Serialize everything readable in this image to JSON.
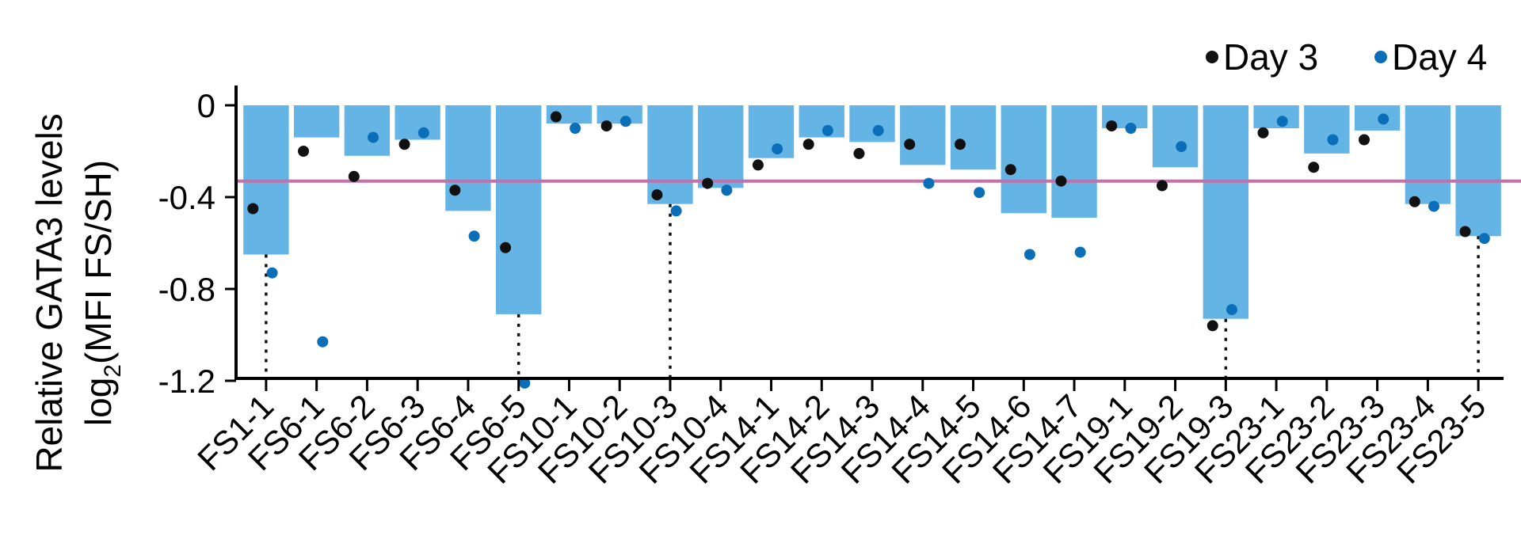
{
  "chart_data": {
    "type": "bar",
    "ylabel_line1": "Relative GATA3 levels",
    "ylabel_line2_pre": "log",
    "ylabel_line2_sub": "2",
    "ylabel_line2_post": "(MFI FS/SH)",
    "ylim": [
      -1.3,
      0.1
    ],
    "yticks": [
      0,
      -0.4,
      -0.8,
      -1.2
    ],
    "ytick_labels": [
      "0",
      "-0.4",
      "-0.8",
      "-1.2"
    ],
    "grid": false,
    "legend_position": "top-right",
    "categories": [
      "FS1-1",
      "FS6-1",
      "FS6-2",
      "FS6-3",
      "FS6-4",
      "FS6-5",
      "FS10-1",
      "FS10-2",
      "FS10-3",
      "FS10-4",
      "FS14-1",
      "FS14-2",
      "FS14-3",
      "FS14-4",
      "FS14-5",
      "FS14-6",
      "FS14-7",
      "FS19-1",
      "FS19-2",
      "FS19-3",
      "FS23-1",
      "FS23-2",
      "FS23-3",
      "FS23-4",
      "FS23-5"
    ],
    "bar_values": [
      -0.65,
      -0.14,
      -0.22,
      -0.15,
      -0.46,
      -0.91,
      -0.08,
      -0.08,
      -0.43,
      -0.36,
      -0.23,
      -0.14,
      -0.16,
      -0.26,
      -0.28,
      -0.47,
      -0.49,
      -0.1,
      -0.27,
      -0.93,
      -0.1,
      -0.21,
      -0.11,
      -0.43,
      -0.57
    ],
    "series": [
      {
        "name": "Day 3",
        "color": "#111111",
        "values": [
          -0.45,
          -0.2,
          -0.31,
          -0.17,
          -0.37,
          -0.62,
          -0.05,
          -0.09,
          -0.39,
          -0.34,
          -0.26,
          -0.17,
          -0.21,
          -0.17,
          -0.17,
          -0.28,
          -0.33,
          -0.09,
          -0.35,
          -0.96,
          -0.12,
          -0.27,
          -0.15,
          -0.42,
          -0.55
        ]
      },
      {
        "name": "Day 4",
        "color": "#0a6fb8",
        "values": [
          -0.73,
          -1.03,
          -0.14,
          -0.12,
          -0.57,
          -1.21,
          -0.1,
          -0.07,
          -0.46,
          -0.37,
          -0.19,
          -0.11,
          -0.11,
          -0.34,
          -0.38,
          -0.65,
          -0.64,
          -0.1,
          -0.18,
          -0.89,
          -0.07,
          -0.15,
          -0.06,
          -0.44,
          -0.58
        ]
      }
    ],
    "day4_first_point_offset_note": "",
    "threshold_line": {
      "value": -0.33,
      "color": "#c86fa8"
    },
    "dotted_line_categories": [
      "FS1-1",
      "FS6-5",
      "FS10-3",
      "FS19-3",
      "FS23-5"
    ],
    "bar_color": "#65b4e6"
  }
}
